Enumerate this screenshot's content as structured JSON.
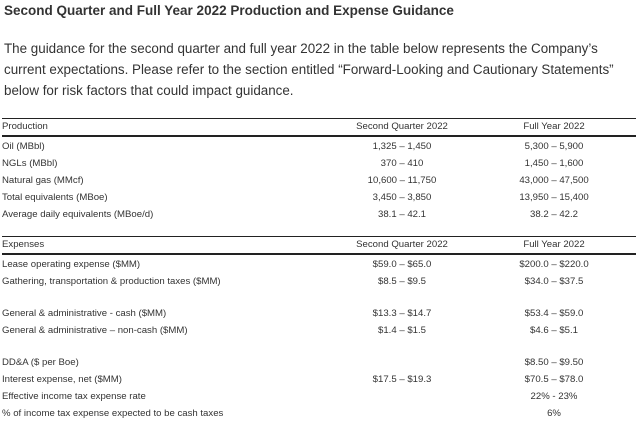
{
  "heading": "Second Quarter and Full Year 2022 Production and Expense Guidance",
  "intro": "The guidance for the second quarter and full year 2022 in the table below represents the Company’s current expectations. Please refer to the section entitled “Forward-Looking and Cautionary Statements” below for risk factors that could impact guidance.",
  "production": {
    "headers": [
      "Production",
      "Second Quarter 2022",
      "Full Year 2022"
    ],
    "rows": [
      [
        "Oil (MBbl)",
        "1,325 – 1,450",
        "5,300 – 5,900"
      ],
      [
        "NGLs (MBbl)",
        "370 – 410",
        "1,450 – 1,600"
      ],
      [
        "Natural gas (MMcf)",
        "10,600 – 11,750",
        "43,000 – 47,500"
      ],
      [
        "Total equivalents (MBoe)",
        "3,450 – 3,850",
        "13,950 – 15,400"
      ],
      [
        "Average daily equivalents (MBoe/d)",
        "38.1 – 42.1",
        "38.2 – 42.2"
      ]
    ]
  },
  "expenses": {
    "headers": [
      "Expenses",
      "Second Quarter 2022",
      "Full Year 2022"
    ],
    "rows": [
      [
        "Lease operating expense ($MM)",
        "$59.0 – $65.0",
        "$200.0 – $220.0"
      ],
      [
        "Gathering, transportation & production taxes ($MM)",
        "$8.5 – $9.5",
        "$34.0 – $37.5"
      ],
      null,
      [
        "General & administrative - cash ($MM)",
        "$13.3 – $14.7",
        "$53.4 – $59.0"
      ],
      [
        "General & administrative – non-cash ($MM)",
        "$1.4 – $1.5",
        "$4.6 – $5.1"
      ],
      null,
      [
        "DD&A ($ per Boe)",
        "",
        "$8.50 – $9.50"
      ],
      [
        "Interest expense, net ($MM)",
        "$17.5 – $19.3",
        "$70.5 – $78.0"
      ],
      [
        "Effective income tax expense rate",
        "",
        "22% - 23%"
      ],
      [
        "% of income tax expense expected to be cash taxes",
        "",
        "6%"
      ]
    ]
  }
}
